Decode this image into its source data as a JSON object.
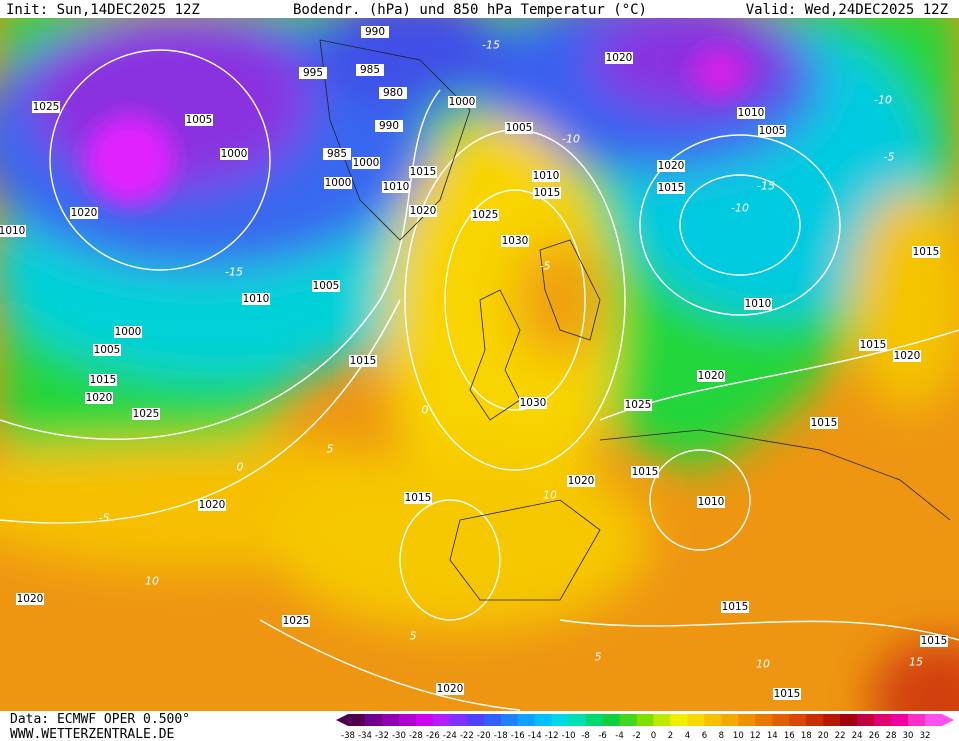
{
  "header": {
    "init": "Init: Sun,14DEC2025 12Z",
    "title": "Bodendr. (hPa) und 850 hPa Temperatur (°C)",
    "valid": "Valid: Wed,24DEC2025 12Z"
  },
  "isobar_labels": [
    "990",
    "995",
    "985",
    "980",
    "990",
    "1000",
    "1025",
    "1005",
    "1000",
    "985",
    "1000",
    "1000",
    "1015",
    "1010",
    "1020",
    "1020",
    "1010",
    "1005",
    "1010",
    "1015",
    "1025",
    "1030",
    "1020",
    "1010",
    "1005",
    "1020",
    "1015",
    "1005",
    "1010",
    "1000",
    "1005",
    "1015",
    "1020",
    "1025",
    "1015",
    "1010",
    "1015",
    "1015",
    "1020",
    "1020",
    "1030",
    "1025",
    "1015",
    "1015",
    "1020",
    "1010",
    "1015",
    "1020",
    "1020",
    "1025",
    "1015",
    "1015",
    "1020",
    "1015"
  ],
  "temperature_labels": [
    "-15",
    "-10",
    "-10",
    "-5",
    "-15",
    "-10",
    "-15",
    "-5",
    "0",
    "5",
    "-5",
    "10",
    "5",
    "5",
    "10",
    "15",
    "0",
    "10"
  ],
  "colorbar": {
    "labels": [
      "-38",
      "-34",
      "-32",
      "-30",
      "-28",
      "-26",
      "-24",
      "-22",
      "-20",
      "-18",
      "-16",
      "-14",
      "-12",
      "-10",
      "-8",
      "-6",
      "-4",
      "-2",
      "0",
      "2",
      "4",
      "6",
      "8",
      "10",
      "12",
      "14",
      "16",
      "18",
      "20",
      "22",
      "24",
      "26",
      "28",
      "30",
      "32"
    ]
  },
  "footer": {
    "source": "Data: ECMWF OPER 0.500°",
    "site": "WWW.WETTERZENTRALE.DE"
  }
}
